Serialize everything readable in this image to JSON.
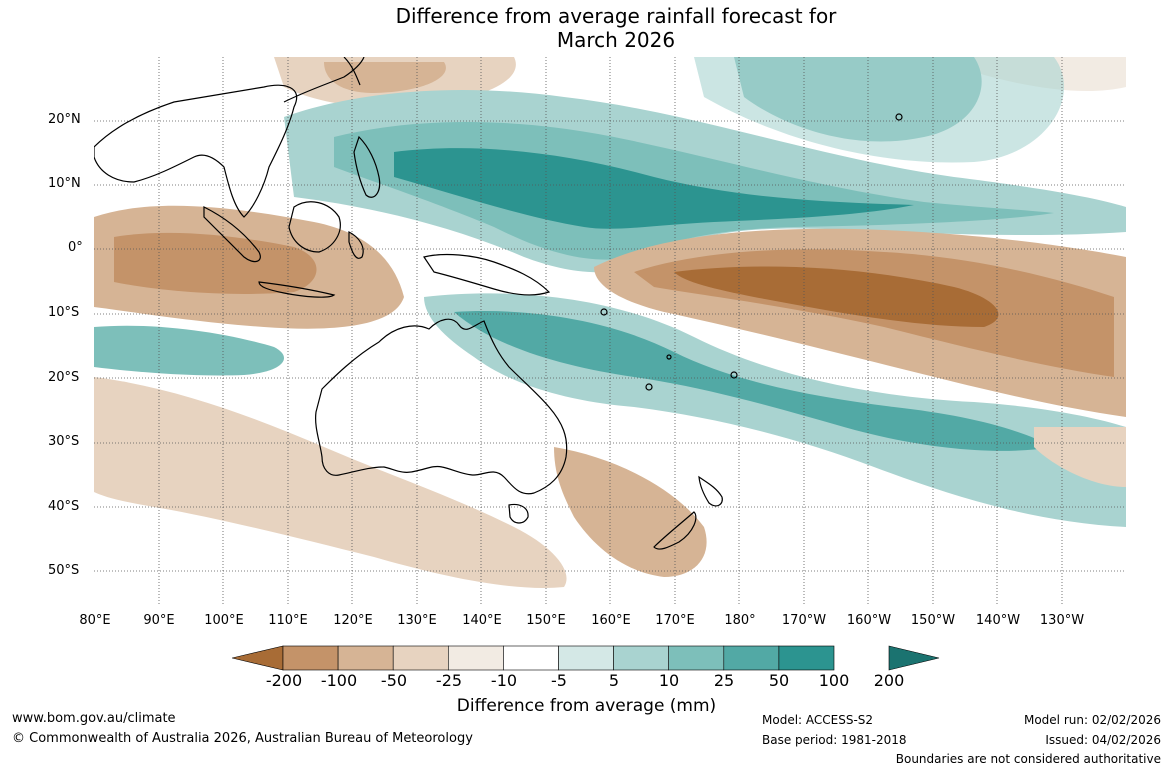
{
  "title": {
    "line1": "Difference from average rainfall forecast for",
    "line2": "March 2026"
  },
  "map": {
    "region": "Australia and surrounding Pacific/Indian Ocean",
    "lat_labels": [
      "20°N",
      "10°N",
      "0°",
      "10°S",
      "20°S",
      "30°S",
      "40°S",
      "50°S"
    ],
    "lon_labels": [
      "80°E",
      "90°E",
      "100°E",
      "110°E",
      "120°E",
      "130°E",
      "140°E",
      "150°E",
      "160°E",
      "170°E",
      "180°",
      "170°W",
      "160°W",
      "150°W",
      "140°W",
      "130°W"
    ],
    "gridlines": true,
    "colors": {
      "very_dry": "#a86c36",
      "dry": "#c49369",
      "moderately_dry": "#d6b495",
      "slightly_dry": "#e7d3c0",
      "near_dry": "#f2ebe3",
      "neutral": "#ffffff",
      "near_wet": "#d4e8e6",
      "slightly_wet": "#a9d3d0",
      "moderately_wet": "#7dbfba",
      "wet": "#52a9a5",
      "very_wet": "#2c9490",
      "extreme_wet": "#1b7370"
    }
  },
  "colorbar": {
    "title": "Difference from average (mm)",
    "labels": [
      "-200",
      "-100",
      "-50",
      "-25",
      "-10",
      "-5",
      "5",
      "10",
      "25",
      "50",
      "100",
      "200"
    ],
    "colors": [
      "#a86c36",
      "#c49369",
      "#d6b495",
      "#e7d3c0",
      "#f2ebe3",
      "#ffffff",
      "#d4e8e6",
      "#a9d3d0",
      "#7dbfba",
      "#52a9a5",
      "#2c9490",
      "#1b7370"
    ]
  },
  "footer": {
    "website": "www.bom.gov.au/climate",
    "copyright": "© Commonwealth of Australia 2026, Australian Bureau of Meteorology",
    "model": "Model: ACCESS-S2",
    "base_period": "Base period: 1981-2018",
    "model_run": "Model run: 02/02/2026",
    "issued": "Issued: 04/02/2026",
    "disclaimer": "Boundaries are not considered authoritative"
  }
}
